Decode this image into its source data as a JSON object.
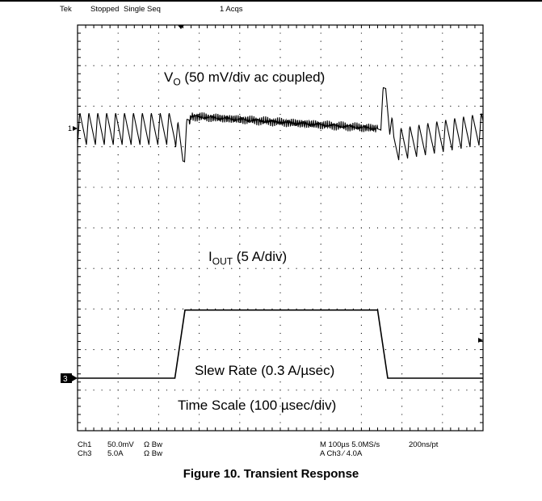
{
  "header": {
    "brand": "Tek",
    "status": "Stopped",
    "mode": "Single Seq",
    "acqs": "1 Acqs"
  },
  "annotations": {
    "vo_label_main": "V",
    "vo_label_sub": "O",
    "vo_label_rest": " (50 mV/div ac coupled)",
    "iout_label_main": "I",
    "iout_label_sub": "OUT",
    "iout_label_rest": " (5 A/div)",
    "slew": "Slew Rate (0.3 A/µsec)",
    "timescale": "Time Scale (100 µsec/div)"
  },
  "footer": {
    "ch1_name": "Ch1",
    "ch1_scale": "50.0mV",
    "ch1_flags": "Ω  Bw",
    "ch3_name": "Ch3",
    "ch3_scale": "5.0A",
    "ch3_flags": "Ω  Bw",
    "timebase": "M 100µs 5.0MS/s",
    "record": "200ns/pt",
    "trigger": "A  Ch3  ⁄  4.0A"
  },
  "markers": {
    "ch1": "1",
    "ch3": "3"
  },
  "caption": "Figure 10. Transient Response",
  "colors": {
    "trace": "#000000",
    "grid": "#000000",
    "background": "#ffffff"
  },
  "chart_data": {
    "type": "line",
    "x_unit": "µs",
    "xlim": [
      0,
      1000
    ],
    "series": [
      {
        "channel": "Ch1",
        "unit": "mV",
        "description": "Output voltage ripple, ac coupled",
        "x": [
          0,
          240,
          260,
          280,
          740,
          760,
          780,
          1000
        ],
        "y": [
          0,
          0,
          -30,
          15,
          0,
          45,
          -20,
          0
        ]
      },
      {
        "channel": "Ch3",
        "unit": "A",
        "x": [
          0,
          240,
          265,
          740,
          765,
          1000
        ],
        "y": [
          0,
          0,
          8.4,
          8.4,
          0,
          0
        ]
      }
    ]
  }
}
